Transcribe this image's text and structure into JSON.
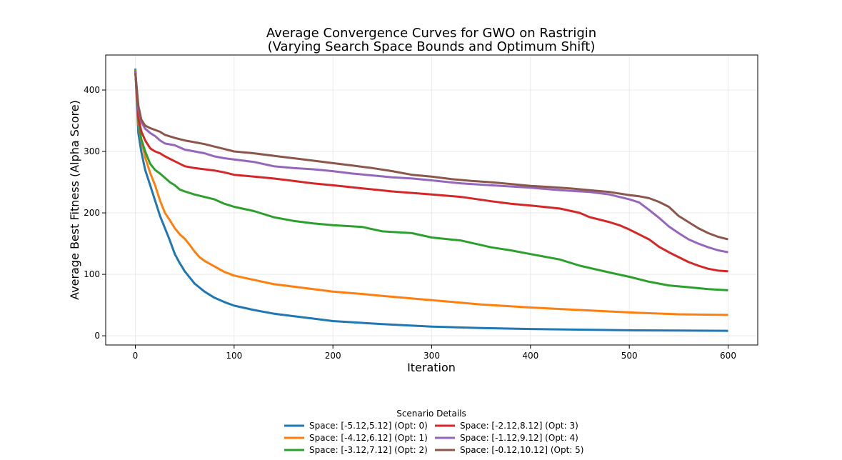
{
  "chart_data": {
    "type": "line",
    "title": "Average Convergence Curves for GWO on Rastrigin",
    "subtitle": "(Varying Search Space Bounds and Optimum Shift)",
    "xlabel": "Iteration",
    "ylabel": "Average Best Fitness (Alpha Score)",
    "xlim": [
      -30,
      630
    ],
    "ylim": [
      -15,
      457
    ],
    "xticks": [
      0,
      100,
      200,
      300,
      400,
      500,
      600
    ],
    "yticks": [
      0,
      100,
      200,
      300,
      400
    ],
    "grid": true,
    "legend": {
      "title": "Scenario Details",
      "placement": "bottom-center",
      "columns": 2
    },
    "series": [
      {
        "name": "Space: [-5.12,5.12] (Opt: 0)",
        "color": "#1f77b4",
        "points": [
          [
            0,
            435
          ],
          [
            3,
            330
          ],
          [
            6,
            300
          ],
          [
            10,
            270
          ],
          [
            15,
            245
          ],
          [
            20,
            220
          ],
          [
            25,
            195
          ],
          [
            30,
            175
          ],
          [
            35,
            155
          ],
          [
            40,
            133
          ],
          [
            45,
            118
          ],
          [
            50,
            105
          ],
          [
            55,
            95
          ],
          [
            60,
            85
          ],
          [
            70,
            72
          ],
          [
            80,
            62
          ],
          [
            90,
            55
          ],
          [
            100,
            49
          ],
          [
            120,
            42
          ],
          [
            140,
            36
          ],
          [
            160,
            32
          ],
          [
            180,
            28
          ],
          [
            200,
            24
          ],
          [
            250,
            19
          ],
          [
            300,
            15
          ],
          [
            350,
            12.5
          ],
          [
            400,
            11
          ],
          [
            450,
            10
          ],
          [
            500,
            9
          ],
          [
            550,
            8.5
          ],
          [
            600,
            8
          ]
        ]
      },
      {
        "name": "Space: [-4.12,6.12] (Opt: 1)",
        "color": "#ff7f0e",
        "points": [
          [
            0,
            433
          ],
          [
            3,
            345
          ],
          [
            6,
            318
          ],
          [
            10,
            290
          ],
          [
            15,
            265
          ],
          [
            20,
            245
          ],
          [
            25,
            220
          ],
          [
            30,
            200
          ],
          [
            35,
            188
          ],
          [
            40,
            175
          ],
          [
            45,
            165
          ],
          [
            50,
            158
          ],
          [
            55,
            148
          ],
          [
            60,
            137
          ],
          [
            65,
            128
          ],
          [
            70,
            122
          ],
          [
            80,
            113
          ],
          [
            90,
            104
          ],
          [
            100,
            98
          ],
          [
            120,
            91
          ],
          [
            140,
            84
          ],
          [
            160,
            80
          ],
          [
            180,
            76
          ],
          [
            200,
            72
          ],
          [
            230,
            68
          ],
          [
            250,
            65
          ],
          [
            300,
            58
          ],
          [
            350,
            51
          ],
          [
            400,
            46
          ],
          [
            450,
            42
          ],
          [
            500,
            38
          ],
          [
            550,
            35
          ],
          [
            600,
            34
          ]
        ]
      },
      {
        "name": "Space: [-3.12,7.12] (Opt: 2)",
        "color": "#2ca02c",
        "points": [
          [
            0,
            432
          ],
          [
            3,
            350
          ],
          [
            6,
            320
          ],
          [
            10,
            300
          ],
          [
            15,
            280
          ],
          [
            20,
            270
          ],
          [
            25,
            264
          ],
          [
            30,
            257
          ],
          [
            35,
            250
          ],
          [
            40,
            245
          ],
          [
            45,
            238
          ],
          [
            50,
            235
          ],
          [
            60,
            230
          ],
          [
            70,
            226
          ],
          [
            80,
            222
          ],
          [
            90,
            215
          ],
          [
            100,
            210
          ],
          [
            120,
            203
          ],
          [
            140,
            193
          ],
          [
            160,
            187
          ],
          [
            180,
            183
          ],
          [
            200,
            180
          ],
          [
            230,
            177
          ],
          [
            250,
            170
          ],
          [
            280,
            167
          ],
          [
            300,
            160
          ],
          [
            330,
            155
          ],
          [
            360,
            144
          ],
          [
            380,
            139
          ],
          [
            400,
            133
          ],
          [
            430,
            124
          ],
          [
            450,
            114
          ],
          [
            480,
            103
          ],
          [
            500,
            96
          ],
          [
            520,
            88
          ],
          [
            540,
            82
          ],
          [
            560,
            79
          ],
          [
            580,
            76
          ],
          [
            600,
            74
          ]
        ]
      },
      {
        "name": "Space: [-2.12,8.12] (Opt: 3)",
        "color": "#d62728",
        "points": [
          [
            0,
            430
          ],
          [
            3,
            355
          ],
          [
            6,
            333
          ],
          [
            10,
            318
          ],
          [
            15,
            305
          ],
          [
            20,
            300
          ],
          [
            25,
            297
          ],
          [
            30,
            292
          ],
          [
            35,
            288
          ],
          [
            40,
            284
          ],
          [
            45,
            280
          ],
          [
            50,
            276
          ],
          [
            60,
            273
          ],
          [
            70,
            271
          ],
          [
            80,
            269
          ],
          [
            90,
            266
          ],
          [
            100,
            262
          ],
          [
            120,
            259
          ],
          [
            140,
            256
          ],
          [
            160,
            252
          ],
          [
            180,
            248
          ],
          [
            200,
            245
          ],
          [
            230,
            240
          ],
          [
            260,
            235
          ],
          [
            300,
            230
          ],
          [
            330,
            226
          ],
          [
            360,
            219
          ],
          [
            380,
            215
          ],
          [
            400,
            212
          ],
          [
            430,
            207
          ],
          [
            450,
            200
          ],
          [
            460,
            193
          ],
          [
            470,
            189
          ],
          [
            480,
            185
          ],
          [
            490,
            180
          ],
          [
            500,
            173
          ],
          [
            510,
            165
          ],
          [
            520,
            157
          ],
          [
            530,
            145
          ],
          [
            540,
            136
          ],
          [
            550,
            128
          ],
          [
            560,
            120
          ],
          [
            570,
            114
          ],
          [
            580,
            109
          ],
          [
            590,
            106
          ],
          [
            600,
            105
          ]
        ]
      },
      {
        "name": "Space: [-1.12,9.12] (Opt: 4)",
        "color": "#9467bd",
        "points": [
          [
            0,
            430
          ],
          [
            3,
            370
          ],
          [
            6,
            348
          ],
          [
            10,
            337
          ],
          [
            15,
            330
          ],
          [
            20,
            325
          ],
          [
            25,
            318
          ],
          [
            30,
            313
          ],
          [
            40,
            310
          ],
          [
            50,
            303
          ],
          [
            60,
            300
          ],
          [
            70,
            297
          ],
          [
            80,
            292
          ],
          [
            90,
            289
          ],
          [
            100,
            287
          ],
          [
            120,
            283
          ],
          [
            140,
            276
          ],
          [
            160,
            273
          ],
          [
            180,
            271
          ],
          [
            200,
            268
          ],
          [
            220,
            264
          ],
          [
            240,
            261
          ],
          [
            260,
            258
          ],
          [
            280,
            256
          ],
          [
            300,
            253
          ],
          [
            330,
            248
          ],
          [
            360,
            245
          ],
          [
            400,
            241
          ],
          [
            430,
            237
          ],
          [
            460,
            234
          ],
          [
            480,
            230
          ],
          [
            500,
            222
          ],
          [
            510,
            217
          ],
          [
            520,
            205
          ],
          [
            530,
            192
          ],
          [
            540,
            178
          ],
          [
            550,
            167
          ],
          [
            560,
            157
          ],
          [
            570,
            150
          ],
          [
            580,
            144
          ],
          [
            590,
            139
          ],
          [
            600,
            136
          ]
        ]
      },
      {
        "name": "Space: [-0.12,10.12] (Opt: 5)",
        "color": "#8c564b",
        "points": [
          [
            0,
            428
          ],
          [
            3,
            375
          ],
          [
            6,
            352
          ],
          [
            10,
            342
          ],
          [
            15,
            338
          ],
          [
            20,
            335
          ],
          [
            25,
            332
          ],
          [
            30,
            327
          ],
          [
            40,
            322
          ],
          [
            50,
            318
          ],
          [
            60,
            315
          ],
          [
            70,
            312
          ],
          [
            80,
            308
          ],
          [
            90,
            304
          ],
          [
            100,
            300
          ],
          [
            120,
            297
          ],
          [
            140,
            293
          ],
          [
            160,
            289
          ],
          [
            180,
            285
          ],
          [
            200,
            281
          ],
          [
            220,
            277
          ],
          [
            240,
            273
          ],
          [
            260,
            268
          ],
          [
            280,
            262
          ],
          [
            300,
            259
          ],
          [
            320,
            255
          ],
          [
            340,
            252
          ],
          [
            360,
            250
          ],
          [
            380,
            247
          ],
          [
            400,
            244
          ],
          [
            420,
            242
          ],
          [
            440,
            240
          ],
          [
            460,
            237
          ],
          [
            480,
            234
          ],
          [
            500,
            229
          ],
          [
            510,
            227
          ],
          [
            520,
            224
          ],
          [
            530,
            218
          ],
          [
            540,
            210
          ],
          [
            550,
            195
          ],
          [
            560,
            185
          ],
          [
            570,
            175
          ],
          [
            580,
            167
          ],
          [
            590,
            161
          ],
          [
            600,
            157
          ]
        ]
      }
    ]
  }
}
